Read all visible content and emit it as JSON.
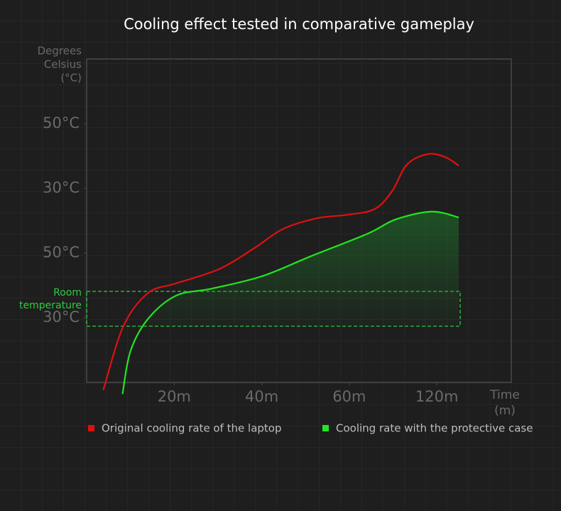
{
  "chart_data": {
    "type": "line",
    "title": "Cooling effect tested in comparative gameplay",
    "y_label": [
      "Degrees",
      "Celsius",
      "(°C)"
    ],
    "x_label": [
      "Time",
      "(m)"
    ],
    "annotation": [
      "Room",
      "temperature"
    ],
    "xlim": [
      0,
      4.85
    ],
    "ylim": [
      0,
      5
    ],
    "xticks": [
      {
        "value": 1,
        "label": "20m"
      },
      {
        "value": 2,
        "label": "40m"
      },
      {
        "value": 3,
        "label": "60m"
      },
      {
        "value": 4,
        "label": "120m"
      }
    ],
    "yticks": [
      {
        "value": 1,
        "label": "30°C"
      },
      {
        "value": 2,
        "label": "50°C"
      },
      {
        "value": 3,
        "label": "30°C"
      },
      {
        "value": 4,
        "label": "50°C"
      }
    ],
    "series": [
      {
        "name": "Original cooling rate of the laptop",
        "color": "#e01010",
        "x": [
          0.19,
          0.42,
          0.7,
          1.02,
          1.51,
          1.92,
          2.24,
          2.64,
          2.97,
          3.29,
          3.49,
          3.66,
          3.9,
          4.1,
          4.25
        ],
        "values": [
          -0.12,
          0.87,
          1.38,
          1.53,
          1.75,
          2.08,
          2.37,
          2.54,
          2.59,
          2.68,
          2.96,
          3.37,
          3.53,
          3.48,
          3.35
        ]
      },
      {
        "name": "Cooling rate with the protective case",
        "color": "#22e622",
        "x": [
          0.41,
          0.5,
          0.7,
          1.02,
          1.43,
          2.0,
          2.56,
          3.21,
          3.53,
          3.94,
          4.25
        ],
        "values": [
          -0.18,
          0.48,
          0.98,
          1.34,
          1.45,
          1.64,
          1.95,
          2.3,
          2.52,
          2.64,
          2.55
        ]
      }
    ]
  }
}
